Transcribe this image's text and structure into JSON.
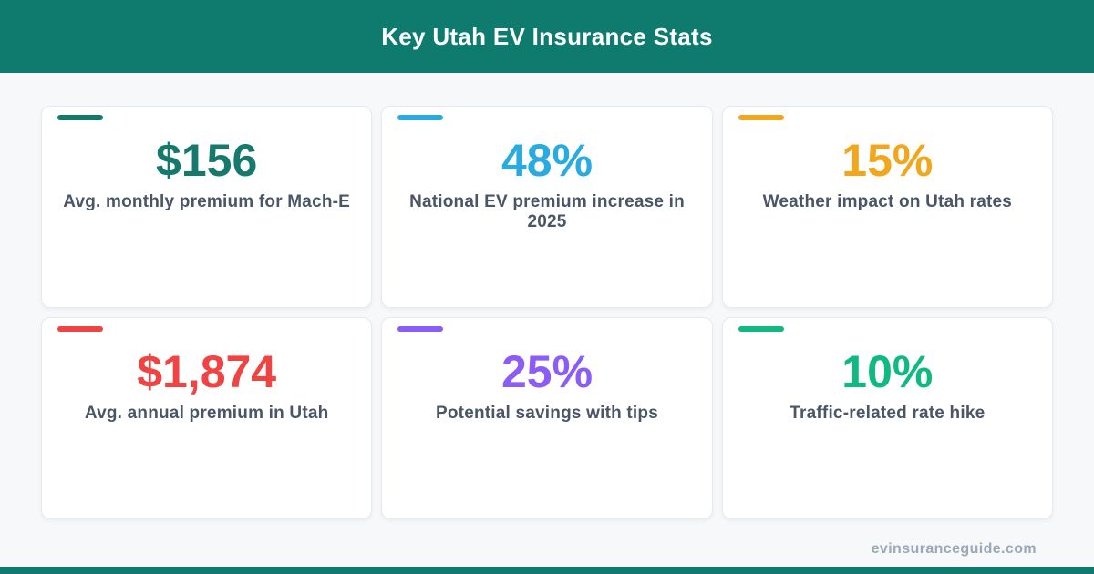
{
  "header": {
    "title": "Key Utah EV Insurance Stats"
  },
  "chart_data": {
    "type": "table",
    "title": "Key Utah EV Insurance Stats",
    "stats": [
      {
        "value": "$156",
        "numeric_value": 156,
        "unit": "USD per month",
        "label": "Avg. monthly premium for Mach-E",
        "color": "#15796C"
      },
      {
        "value": "48%",
        "numeric_value": 48,
        "unit": "percent",
        "label": "National EV premium increase in 2025",
        "color": "#29ABE2"
      },
      {
        "value": "15%",
        "numeric_value": 15,
        "unit": "percent",
        "label": "Weather impact on Utah rates",
        "color": "#F2A61C"
      },
      {
        "value": "$1,874",
        "numeric_value": 1874,
        "unit": "USD per year",
        "label": "Avg. annual premium in Utah",
        "color": "#EF4444"
      },
      {
        "value": "25%",
        "numeric_value": 25,
        "unit": "percent",
        "label": "Potential savings with tips",
        "color": "#8B5CF6"
      },
      {
        "value": "10%",
        "numeric_value": 10,
        "unit": "percent",
        "label": "Traffic-related rate hike",
        "color": "#10B981"
      }
    ],
    "layout": "3x2 stat cards"
  },
  "colors": {
    "header_bg": "#0F7A6E",
    "page_bg": "#F6F8FA",
    "card_bg": "#FFFFFF",
    "card_border": "#E5EAF1",
    "label_text": "#4A5568",
    "footer_text": "#9DA8B6",
    "bottom_bar": "#0F7A6E"
  },
  "footer": {
    "site": "evinsuranceguide.com"
  }
}
